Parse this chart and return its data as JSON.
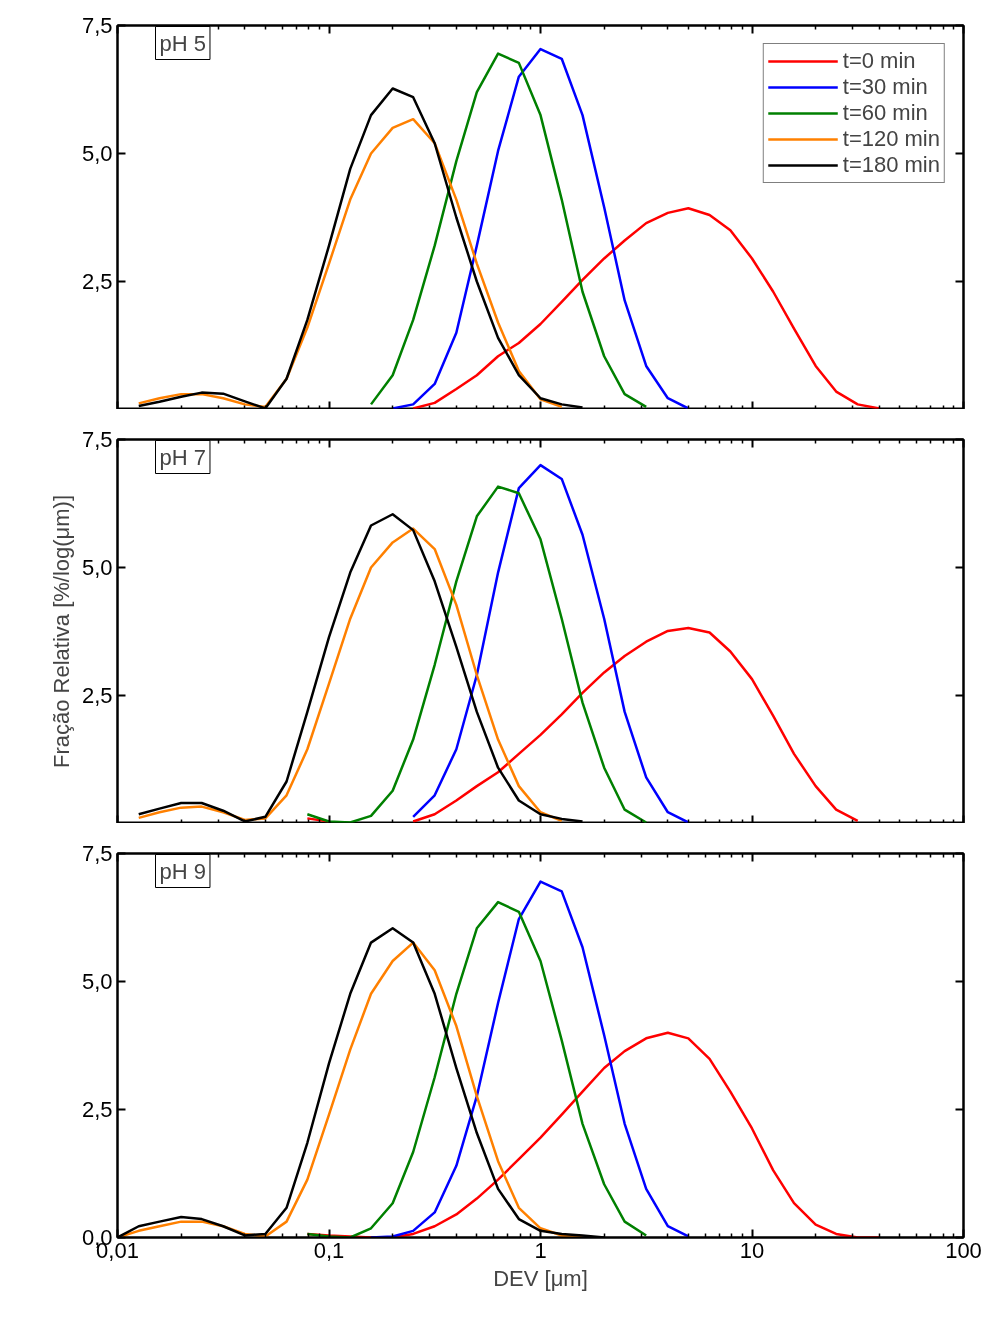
{
  "chart_data": [
    {
      "type": "line",
      "annotations": [
        "pH 5"
      ],
      "log": "x",
      "xlim": [
        0.01,
        100
      ],
      "ylim": [
        0,
        7.5
      ],
      "xticks": [
        0.01,
        0.1,
        1,
        10,
        100
      ],
      "yticks": [
        {
          "value": 2.5,
          "label": "2,5"
        },
        {
          "value": 5,
          "label": "5,0"
        },
        {
          "value": 7.5,
          "label": "7,5"
        }
      ],
      "tick_labels": "y",
      "legend": "top right",
      "grid": false,
      "x": [
        0.0126,
        0.0158,
        0.02,
        0.025,
        0.0316,
        0.04,
        0.05,
        0.063,
        0.079,
        0.1,
        0.126,
        0.158,
        0.2,
        0.25,
        0.316,
        0.4,
        0.5,
        0.63,
        0.79,
        1,
        1.26,
        1.58,
        2,
        2.5,
        3.16,
        4,
        5,
        6.3,
        7.9,
        10,
        12.6,
        15.8,
        20,
        25,
        31.6,
        40
      ],
      "series": [
        {
          "name": "t=0 min",
          "color": "#ff0000",
          "values": [
            null,
            null,
            null,
            null,
            null,
            null,
            null,
            null,
            null,
            null,
            null,
            null,
            null,
            0.02,
            0.13,
            0.4,
            0.67,
            1.04,
            1.3,
            1.67,
            2.1,
            2.53,
            2.95,
            3.3,
            3.64,
            3.84,
            3.93,
            3.8,
            3.5,
            2.95,
            2.3,
            1.58,
            0.85,
            0.35,
            0.1,
            0.02
          ]
        },
        {
          "name": "t=30 min",
          "color": "#0000ff",
          "values": [
            null,
            null,
            null,
            null,
            null,
            null,
            null,
            null,
            null,
            null,
            null,
            null,
            0.02,
            0.1,
            0.5,
            1.5,
            3.2,
            5.05,
            6.5,
            7.04,
            6.85,
            5.75,
            3.95,
            2.13,
            0.85,
            0.22,
            0.02,
            null,
            null,
            null,
            null,
            null,
            null,
            null,
            null,
            null
          ]
        },
        {
          "name": "t=60 min",
          "color": "#008000",
          "values": [
            null,
            null,
            null,
            null,
            null,
            null,
            null,
            null,
            null,
            null,
            null,
            0.1,
            0.67,
            1.75,
            3.2,
            4.85,
            6.2,
            6.95,
            6.77,
            5.75,
            4.1,
            2.3,
            1.04,
            0.3,
            0.05,
            null,
            null,
            null,
            null,
            null,
            null,
            null,
            null,
            null,
            null,
            null
          ]
        },
        {
          "name": "t=120 min",
          "color": "#ff8000",
          "values": [
            0.12,
            0.22,
            0.3,
            0.3,
            0.22,
            0.1,
            0.05,
            0.6,
            1.6,
            2.85,
            4.1,
            5.0,
            5.5,
            5.67,
            5.2,
            4.1,
            2.85,
            1.7,
            0.75,
            0.2,
            0.05,
            null,
            null,
            null,
            null,
            null,
            null,
            null,
            null,
            null,
            null,
            null,
            null,
            null,
            null,
            null
          ]
        },
        {
          "name": "t=180 min",
          "color": "#000000",
          "values": [
            0.07,
            0.15,
            0.25,
            0.33,
            0.31,
            0.16,
            0.02,
            0.6,
            1.75,
            3.2,
            4.7,
            5.75,
            6.27,
            6.1,
            5.2,
            3.75,
            2.5,
            1.4,
            0.67,
            0.22,
            0.1,
            0.04,
            null,
            null,
            null,
            null,
            null,
            null,
            null,
            null,
            null,
            null,
            null,
            null,
            null,
            null
          ]
        }
      ]
    },
    {
      "type": "line",
      "annotations": [
        "pH 7"
      ],
      "ylabel": "Fração Relativa [%/log(μm)]",
      "log": "x",
      "xlim": [
        0.01,
        100
      ],
      "ylim": [
        0,
        7.5
      ],
      "xticks": [
        0.01,
        0.1,
        1,
        10,
        100
      ],
      "yticks": [
        {
          "value": 2.5,
          "label": "2,5"
        },
        {
          "value": 5,
          "label": "5,0"
        },
        {
          "value": 7.5,
          "label": "7,5"
        }
      ],
      "tick_labels": "y",
      "grid": false,
      "x": [
        0.0126,
        0.0158,
        0.02,
        0.025,
        0.0316,
        0.04,
        0.05,
        0.063,
        0.079,
        0.1,
        0.126,
        0.158,
        0.2,
        0.25,
        0.316,
        0.4,
        0.5,
        0.63,
        0.79,
        1,
        1.26,
        1.58,
        2,
        2.5,
        3.16,
        4,
        5,
        6.3,
        7.9,
        10,
        12.6,
        15.8,
        20,
        25,
        31.6
      ],
      "series": [
        {
          "color": "#ff0000",
          "values": [
            null,
            null,
            null,
            null,
            null,
            null,
            null,
            null,
            0.1,
            0.04,
            null,
            null,
            null,
            0.04,
            0.18,
            0.45,
            0.73,
            1.0,
            1.36,
            1.73,
            2.13,
            2.55,
            2.95,
            3.27,
            3.55,
            3.76,
            3.82,
            3.73,
            3.36,
            2.82,
            2.1,
            1.36,
            0.73,
            0.27,
            0.05
          ]
        },
        {
          "color": "#0000ff",
          "values": [
            null,
            null,
            null,
            null,
            null,
            null,
            null,
            null,
            null,
            null,
            null,
            null,
            null,
            0.13,
            0.55,
            1.45,
            2.9,
            4.9,
            6.55,
            7.0,
            6.73,
            5.64,
            4.0,
            2.18,
            0.9,
            0.22,
            0.02,
            null,
            null,
            null,
            null,
            null,
            null,
            null,
            null
          ]
        },
        {
          "color": "#008000",
          "values": [
            null,
            null,
            null,
            null,
            null,
            null,
            null,
            null,
            0.18,
            0.04,
            0.02,
            0.15,
            0.64,
            1.64,
            3.1,
            4.73,
            6.0,
            6.58,
            6.45,
            5.55,
            4.0,
            2.36,
            1.09,
            0.27,
            0.02,
            null,
            null,
            null,
            null,
            null,
            null,
            null,
            null,
            null,
            null
          ]
        },
        {
          "color": "#ff8000",
          "values": [
            0.11,
            0.22,
            0.31,
            0.33,
            0.22,
            0.07,
            0.1,
            0.55,
            1.45,
            2.73,
            4.0,
            5.0,
            5.49,
            5.76,
            5.36,
            4.27,
            2.9,
            1.64,
            0.73,
            0.22,
            0.05,
            null,
            null,
            null,
            null,
            null,
            null,
            null,
            null,
            null,
            null,
            null,
            null,
            null,
            null
          ]
        },
        {
          "color": "#000000",
          "values": [
            0.18,
            0.29,
            0.4,
            0.4,
            0.25,
            0.04,
            0.13,
            0.82,
            2.18,
            3.64,
            4.9,
            5.82,
            6.04,
            5.73,
            4.73,
            3.45,
            2.18,
            1.09,
            0.45,
            0.18,
            0.09,
            0.04,
            null,
            null,
            null,
            null,
            null,
            null,
            null,
            null,
            null,
            null,
            null,
            null,
            null
          ]
        }
      ]
    },
    {
      "type": "line",
      "annotations": [
        "pH 9"
      ],
      "xlabel": "DEV [μm]",
      "log": "x",
      "xlim": [
        0.01,
        100
      ],
      "ylim": [
        0,
        7.5
      ],
      "xticks": [
        {
          "value": 0.01,
          "label": "0,01"
        },
        {
          "value": 0.1,
          "label": "0,1"
        },
        {
          "value": 1,
          "label": "1"
        },
        {
          "value": 10,
          "label": "10"
        },
        {
          "value": 100,
          "label": "100"
        }
      ],
      "yticks": [
        {
          "value": 0,
          "label": "0,0"
        },
        {
          "value": 2.5,
          "label": "2,5"
        },
        {
          "value": 5,
          "label": "5,0"
        },
        {
          "value": 7.5,
          "label": "7,5"
        }
      ],
      "grid": false,
      "x": [
        0.01,
        0.0126,
        0.0158,
        0.02,
        0.025,
        0.0316,
        0.04,
        0.05,
        0.063,
        0.079,
        0.1,
        0.126,
        0.158,
        0.2,
        0.25,
        0.316,
        0.4,
        0.5,
        0.63,
        0.79,
        1,
        1.26,
        1.58,
        2,
        2.5,
        3.16,
        4,
        5,
        6.3,
        7.9,
        10,
        12.6,
        15.8,
        20,
        25,
        31.6,
        40
      ],
      "series": [
        {
          "color": "#ff0000",
          "values": [
            null,
            null,
            null,
            null,
            null,
            null,
            null,
            null,
            null,
            0.07,
            0.04,
            0.02,
            0,
            0,
            0.07,
            0.22,
            0.45,
            0.76,
            1.13,
            1.53,
            1.95,
            2.4,
            2.85,
            3.31,
            3.64,
            3.89,
            4.0,
            3.89,
            3.49,
            2.85,
            2.13,
            1.31,
            0.67,
            0.25,
            0.07,
            0,
            0
          ]
        },
        {
          "color": "#0000ff",
          "values": [
            null,
            null,
            null,
            null,
            null,
            null,
            null,
            null,
            null,
            null,
            null,
            null,
            0,
            0.02,
            0.13,
            0.49,
            1.4,
            2.76,
            4.58,
            6.22,
            6.95,
            6.76,
            5.67,
            3.95,
            2.22,
            0.95,
            0.22,
            0.02,
            null,
            null,
            null,
            null,
            null,
            null,
            null,
            null,
            null
          ]
        },
        {
          "color": "#008000",
          "values": [
            null,
            null,
            null,
            null,
            null,
            null,
            null,
            null,
            null,
            0.07,
            0.02,
            0,
            0.18,
            0.67,
            1.67,
            3.13,
            4.76,
            6.04,
            6.55,
            6.36,
            5.4,
            3.85,
            2.22,
            1.04,
            0.31,
            0.04,
            null,
            null,
            null,
            null,
            null,
            null,
            null,
            null,
            null,
            null,
            null
          ]
        },
        {
          "color": "#ff8000",
          "values": [
            0,
            0.13,
            0.22,
            0.31,
            0.31,
            0.22,
            0.07,
            0.02,
            0.31,
            1.13,
            2.4,
            3.67,
            4.76,
            5.4,
            5.76,
            5.22,
            4.13,
            2.76,
            1.49,
            0.58,
            0.18,
            0.04,
            0,
            null,
            null,
            null,
            null,
            null,
            null,
            null,
            null,
            null,
            null,
            null,
            null,
            null,
            null
          ]
        },
        {
          "color": "#000000",
          "values": [
            0,
            0.22,
            0.31,
            0.4,
            0.36,
            0.22,
            0.04,
            0.07,
            0.58,
            1.85,
            3.4,
            4.76,
            5.76,
            6.04,
            5.76,
            4.76,
            3.31,
            2.04,
            0.95,
            0.36,
            0.13,
            0.07,
            0.04,
            0,
            null,
            null,
            null,
            null,
            null,
            null,
            null,
            null,
            null,
            null,
            null,
            null,
            null
          ]
        }
      ]
    }
  ]
}
